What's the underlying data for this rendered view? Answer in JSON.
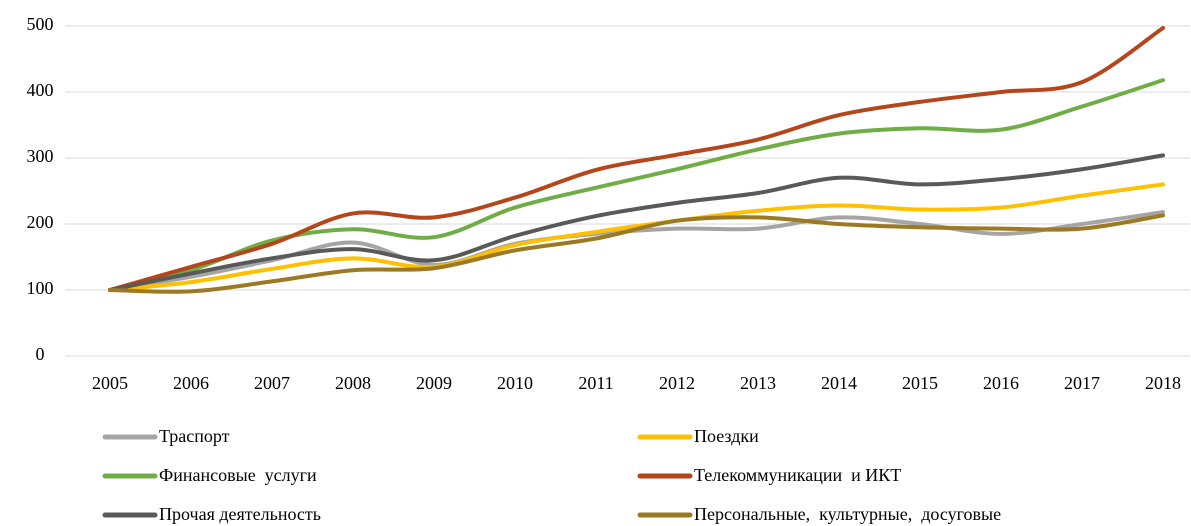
{
  "chart_data": {
    "type": "line",
    "categories": [
      "2005",
      "2006",
      "2007",
      "2008",
      "2009",
      "2010",
      "2011",
      "2012",
      "2013",
      "2014",
      "2015",
      "2016",
      "2017",
      "2018"
    ],
    "ylim": [
      0,
      500
    ],
    "yticks": [
      0,
      100,
      200,
      300,
      400,
      500
    ],
    "grid": true,
    "legend": "bottom",
    "series": [
      {
        "name": "Траспорт",
        "color": "#a5a5a5",
        "values": [
          100,
          120,
          145,
          172,
          138,
          170,
          185,
          193,
          193,
          210,
          200,
          185,
          200,
          218
        ]
      },
      {
        "name": "Поездки",
        "color": "#ffc000",
        "values": [
          100,
          112,
          132,
          148,
          135,
          168,
          188,
          205,
          220,
          228,
          222,
          225,
          243,
          260
        ]
      },
      {
        "name": "Финансовые  услуги",
        "color": "#70ad47",
        "values": [
          100,
          130,
          175,
          192,
          180,
          225,
          255,
          283,
          313,
          337,
          345,
          343,
          378,
          418
        ]
      },
      {
        "name": "Телекоммуникации  и ИКТ",
        "color": "#b5461b",
        "values": [
          100,
          135,
          170,
          216,
          210,
          240,
          282,
          305,
          328,
          365,
          385,
          400,
          415,
          497
        ]
      },
      {
        "name": "Прочая деятельность",
        "color": "#595959",
        "values": [
          100,
          125,
          148,
          162,
          145,
          182,
          212,
          232,
          247,
          270,
          260,
          268,
          283,
          304
        ]
      },
      {
        "name": "Персональные,  культурные,  досуговые",
        "color": "#9c7a24",
        "values": [
          100,
          98,
          113,
          130,
          133,
          160,
          178,
          205,
          210,
          200,
          195,
          193,
          193,
          213
        ]
      }
    ]
  }
}
